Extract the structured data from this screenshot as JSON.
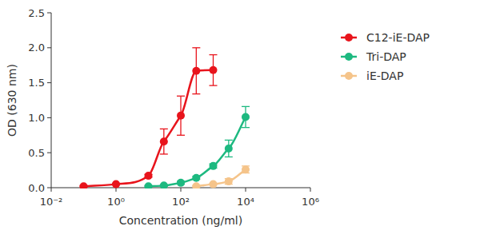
{
  "chart_data": {
    "type": "scatter",
    "x_label": "Concentration (ng/ml)",
    "y_label": "OD (630 nm)",
    "log": "x",
    "legend": "top-right",
    "grid": false,
    "xlim": [
      0.01,
      1000000
    ],
    "xticks": [
      {
        "value": 0.01,
        "label": "10⁻²"
      },
      {
        "value": 1,
        "label": "10⁰"
      },
      {
        "value": 100,
        "label": "10²"
      },
      {
        "value": 10000,
        "label": "10⁴"
      },
      {
        "value": 1000000,
        "label": "10⁶"
      }
    ],
    "ylim": [
      0,
      2.5
    ],
    "yticks": [
      {
        "value": 0,
        "label": "0.0"
      },
      {
        "value": 0.5,
        "label": "0.5"
      },
      {
        "value": 1,
        "label": "1.0"
      },
      {
        "value": 1.5,
        "label": "1.5"
      },
      {
        "value": 2,
        "label": "2.0"
      },
      {
        "value": 2.5,
        "label": "2.5"
      }
    ],
    "series": [
      {
        "name": "C12-iE-DAP",
        "color": "#e8141c",
        "marker": "circle",
        "line_style": "solid",
        "x": [
          0.1,
          1,
          10,
          30,
          100,
          300,
          1000
        ],
        "values": [
          0.02,
          0.05,
          0.17,
          0.66,
          1.03,
          1.67,
          1.68
        ],
        "errors": [
          0.01,
          0.01,
          0.02,
          0.18,
          0.28,
          0.33,
          0.22
        ]
      },
      {
        "name": "Tri-DAP",
        "color": "#1db980",
        "marker": "circle",
        "line_style": "solid",
        "x": [
          10,
          30,
          100,
          300,
          1000,
          3000,
          10000
        ],
        "values": [
          0.02,
          0.03,
          0.07,
          0.14,
          0.31,
          0.56,
          1.01
        ],
        "errors": [
          0.01,
          0.01,
          0.02,
          0.02,
          0.03,
          0.12,
          0.15
        ]
      },
      {
        "name": "iE-DAP",
        "color": "#f5c48a",
        "marker": "circle",
        "line_style": "solid",
        "x": [
          300,
          1000,
          3000,
          10000
        ],
        "values": [
          0.02,
          0.05,
          0.09,
          0.26
        ],
        "errors": [
          0.01,
          0.01,
          0.04,
          0.05
        ]
      }
    ]
  }
}
